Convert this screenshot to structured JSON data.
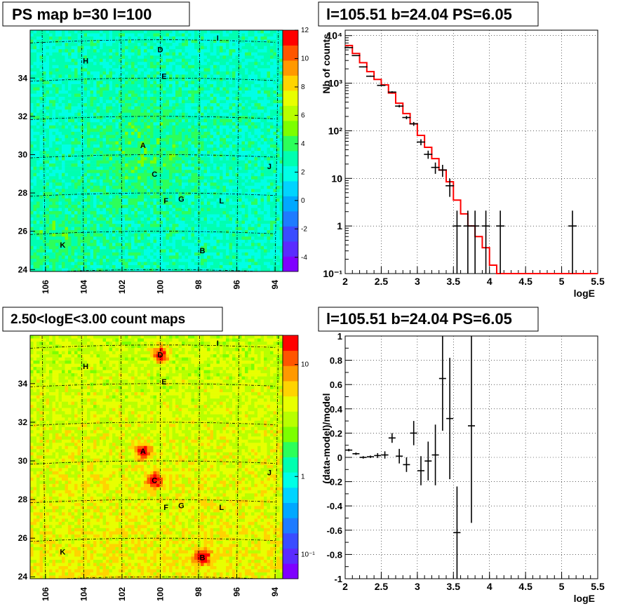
{
  "chart_data": [
    {
      "type": "heatmap",
      "title": "PS map b=30 l=100",
      "x_ticks": [
        "106",
        "104",
        "102",
        "100",
        "98",
        "96",
        "94"
      ],
      "y_ticks": [
        "24",
        "26",
        "28",
        "30",
        "32",
        "34"
      ],
      "colorbar_ticks": [
        "-4",
        "-2",
        "0",
        "2",
        "4",
        "6",
        "8",
        "10",
        "12"
      ],
      "colorbar_range": [
        -5,
        12
      ],
      "sources": [
        {
          "label": "A",
          "l": 100.9,
          "b": 30.5
        },
        {
          "label": "B",
          "l": 97.8,
          "b": 25.0
        },
        {
          "label": "C",
          "l": 100.3,
          "b": 29.0
        },
        {
          "label": "D",
          "l": 100.0,
          "b": 35.5
        },
        {
          "label": "E",
          "l": 99.8,
          "b": 34.1
        },
        {
          "label": "F",
          "l": 99.7,
          "b": 27.6
        },
        {
          "label": "G",
          "l": 98.9,
          "b": 27.7
        },
        {
          "label": "H",
          "l": 103.9,
          "b": 34.9
        },
        {
          "label": "I",
          "l": 97.0,
          "b": 36.1
        },
        {
          "label": "J",
          "l": 94.3,
          "b": 29.4
        },
        {
          "label": "K",
          "l": 105.1,
          "b": 25.3
        },
        {
          "label": "L",
          "l": 96.8,
          "b": 27.6
        }
      ]
    },
    {
      "type": "line",
      "title": "l=105.51 b=24.04 PS=6.05",
      "xlabel": "logE",
      "ylabel": "Nb of counts",
      "xlim": [
        2,
        5.5
      ],
      "ylim": [
        0.1,
        13000
      ],
      "yscale": "log",
      "x_ticks": [
        "2",
        "2.5",
        "3",
        "3.5",
        "4",
        "4.5",
        "5",
        "5.5"
      ],
      "y_ticks": [
        "10⁻¹",
        "1",
        "10",
        "10²",
        "10³",
        "10⁴"
      ],
      "grid": true,
      "data_points": [
        {
          "x": 2.05,
          "y": 5600
        },
        {
          "x": 2.15,
          "y": 3800
        },
        {
          "x": 2.25,
          "y": 2200
        },
        {
          "x": 2.35,
          "y": 1400
        },
        {
          "x": 2.5,
          "y": 900
        },
        {
          "x": 2.65,
          "y": 650
        },
        {
          "x": 2.75,
          "y": 330
        },
        {
          "x": 2.85,
          "y": 190
        },
        {
          "x": 2.95,
          "y": 140
        },
        {
          "x": 3.05,
          "y": 58
        },
        {
          "x": 3.15,
          "y": 32
        },
        {
          "x": 3.25,
          "y": 17
        },
        {
          "x": 3.35,
          "y": 15
        },
        {
          "x": 3.45,
          "y": 7
        },
        {
          "x": 3.55,
          "y": 1
        },
        {
          "x": 3.7,
          "y": 1
        },
        {
          "x": 3.8,
          "y": 1
        },
        {
          "x": 3.95,
          "y": 1
        },
        {
          "x": 4.15,
          "y": 1
        },
        {
          "x": 5.15,
          "y": 1
        }
      ],
      "model_step": {
        "edges": [
          2.0,
          2.1,
          2.2,
          2.3,
          2.4,
          2.5,
          2.6,
          2.7,
          2.8,
          2.9,
          3.0,
          3.1,
          3.2,
          3.3,
          3.4,
          3.5,
          3.6,
          3.7,
          3.8,
          3.9,
          4.0,
          4.1,
          5.5
        ],
        "values": [
          6200,
          4200,
          2700,
          1750,
          1200,
          920,
          620,
          380,
          230,
          140,
          80,
          45,
          26,
          15,
          8.5,
          3.5,
          1.8,
          1.0,
          0.6,
          0.35,
          0.15,
          0.1
        ]
      }
    },
    {
      "type": "heatmap",
      "title": "2.50<logE<3.00 count maps",
      "x_ticks": [
        "106",
        "104",
        "102",
        "100",
        "98",
        "96",
        "94"
      ],
      "y_ticks": [
        "24",
        "26",
        "28",
        "30",
        "32",
        "34"
      ],
      "colorbar_ticks": [
        "10⁻¹",
        "1",
        "10"
      ],
      "colorbar_scale": "log",
      "sources": [
        {
          "label": "A",
          "l": 100.9,
          "b": 30.5
        },
        {
          "label": "B",
          "l": 97.8,
          "b": 25.0
        },
        {
          "label": "C",
          "l": 100.3,
          "b": 29.0
        },
        {
          "label": "D",
          "l": 100.0,
          "b": 35.5
        },
        {
          "label": "E",
          "l": 99.8,
          "b": 34.1
        },
        {
          "label": "F",
          "l": 99.7,
          "b": 27.6
        },
        {
          "label": "G",
          "l": 98.9,
          "b": 27.7
        },
        {
          "label": "H",
          "l": 103.9,
          "b": 34.9
        },
        {
          "label": "I",
          "l": 97.0,
          "b": 36.1
        },
        {
          "label": "J",
          "l": 94.3,
          "b": 29.4
        },
        {
          "label": "K",
          "l": 105.1,
          "b": 25.3
        },
        {
          "label": "L",
          "l": 96.8,
          "b": 27.6
        }
      ]
    },
    {
      "type": "scatter",
      "title": "l=105.51 b=24.04 PS=6.05",
      "xlabel": "logE",
      "ylabel": "(data-model)/model",
      "xlim": [
        2,
        5.5
      ],
      "ylim": [
        -1,
        1
      ],
      "x_ticks": [
        "2",
        "2.5",
        "3",
        "3.5",
        "4",
        "4.5",
        "5",
        "5.5"
      ],
      "y_ticks": [
        "-1",
        "-0.8",
        "-0.6",
        "-0.4",
        "-0.2",
        "0",
        "0.2",
        "0.4",
        "0.6",
        "0.8",
        "1"
      ],
      "grid": true,
      "data_points": [
        {
          "x": 2.05,
          "y": 0.06,
          "err": 0.01
        },
        {
          "x": 2.15,
          "y": 0.03,
          "err": 0.01
        },
        {
          "x": 2.25,
          "y": 0.0,
          "err": 0.01
        },
        {
          "x": 2.35,
          "y": 0.005,
          "err": 0.01
        },
        {
          "x": 2.45,
          "y": 0.015,
          "err": 0.02
        },
        {
          "x": 2.55,
          "y": 0.02,
          "err": 0.03
        },
        {
          "x": 2.65,
          "y": 0.16,
          "err": 0.04
        },
        {
          "x": 2.75,
          "y": 0.01,
          "err": 0.06
        },
        {
          "x": 2.85,
          "y": -0.06,
          "err": 0.06
        },
        {
          "x": 2.95,
          "y": 0.2,
          "err": 0.1
        },
        {
          "x": 3.05,
          "y": -0.11,
          "err": 0.12
        },
        {
          "x": 3.15,
          "y": -0.03,
          "err": 0.16
        },
        {
          "x": 3.25,
          "y": 0.02,
          "err": 0.25
        },
        {
          "x": 3.35,
          "y": 0.65,
          "err": 0.43
        },
        {
          "x": 3.45,
          "y": 0.32,
          "err": 0.5
        },
        {
          "x": 3.55,
          "y": -0.62,
          "err": 0.38
        },
        {
          "x": 3.75,
          "y": 0.26,
          "err": 0.8
        }
      ]
    }
  ],
  "map_labels": {
    "A": "A",
    "B": "B",
    "C": "C",
    "D": "D",
    "E": "E",
    "F": "F",
    "G": "G",
    "H": "H",
    "I": "I",
    "J": "J",
    "K": "K",
    "L": "L"
  }
}
